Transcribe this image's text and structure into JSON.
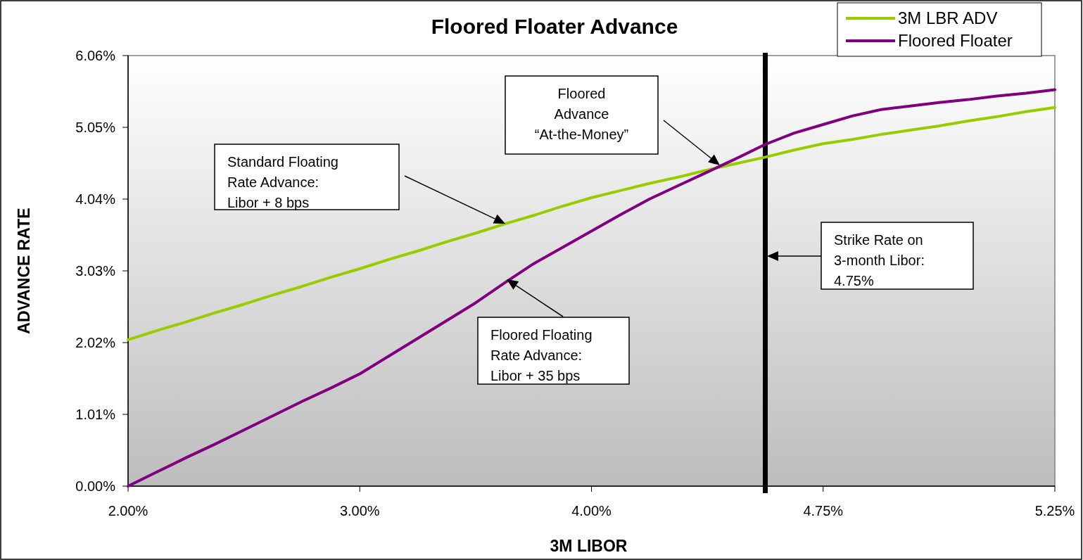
{
  "chart_data": {
    "type": "line",
    "title": "Floored Floater Advance",
    "xlabel": "3M LIBOR",
    "ylabel": "ADVANCE RATE",
    "categories": [
      "2.00%",
      null,
      null,
      null,
      null,
      null,
      null,
      null,
      "3.00%",
      null,
      null,
      null,
      null,
      null,
      null,
      null,
      "4.00%",
      null,
      null,
      null,
      null,
      null,
      null,
      null,
      "4.75%",
      null,
      null,
      null,
      null,
      null,
      null,
      null,
      "5.25%"
    ],
    "series": [
      {
        "name": "3M LBR ADV",
        "color": "#99cc00",
        "values": [
          2.06,
          2.19,
          2.31,
          2.44,
          2.56,
          2.69,
          2.81,
          2.94,
          3.06,
          3.19,
          3.31,
          3.44,
          3.56,
          3.69,
          3.81,
          3.94,
          4.06,
          4.16,
          4.26,
          4.35,
          4.45,
          4.54,
          4.63,
          4.73,
          4.82,
          4.88,
          4.95,
          5.01,
          5.07,
          5.14,
          5.2,
          5.27,
          5.33
        ]
      },
      {
        "name": "Floored Floater",
        "color": "#800080",
        "values": [
          0,
          0.2,
          0.4,
          0.59,
          0.79,
          0.99,
          1.19,
          1.38,
          1.58,
          1.83,
          2.08,
          2.33,
          2.58,
          2.86,
          3.13,
          3.36,
          3.59,
          3.82,
          4.04,
          4.23,
          4.42,
          4.61,
          4.81,
          4.97,
          5.09,
          5.21,
          5.3,
          5.35,
          5.4,
          5.44,
          5.49,
          5.53,
          5.58
        ]
      }
    ],
    "ylim": [
      0,
      6.06
    ],
    "yticks": [
      {
        "value": 0,
        "label": "0.00%"
      },
      {
        "value": 1.01,
        "label": "1.01%"
      },
      {
        "value": 2.02,
        "label": "2.02%"
      },
      {
        "value": 3.03,
        "label": "3.03%"
      },
      {
        "value": 4.04,
        "label": "4.04%"
      },
      {
        "value": 5.05,
        "label": "5.05%"
      },
      {
        "value": 6.06,
        "label": "6.06%"
      }
    ],
    "annotations": [
      "Standard Floating\nRate Advance:\nLibor + 8 bps",
      "Floored\nAdvance\n“At-the-Money”",
      "Floored Floating\nRate Advance:\nLibor + 35 bps",
      "Strike Rate on\n3-month Libor:\n4.75%"
    ],
    "legend": "top right",
    "marker": "none",
    "line_style": "solid"
  }
}
